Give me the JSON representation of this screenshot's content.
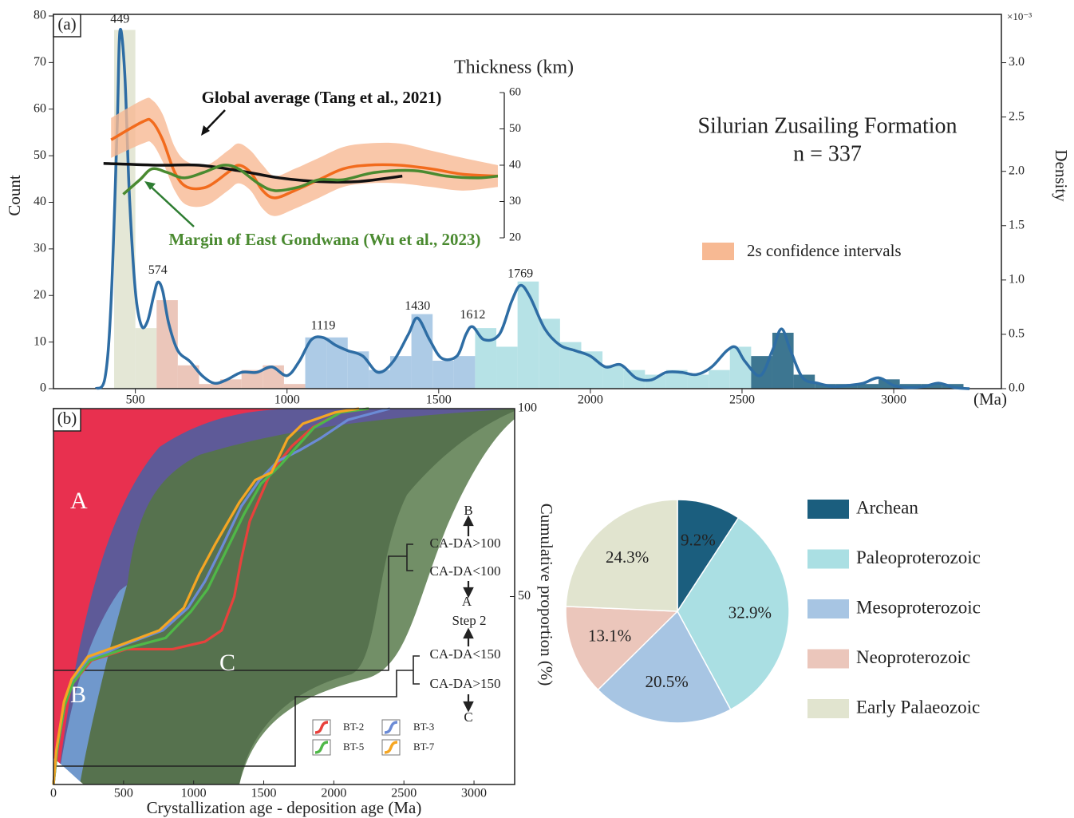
{
  "chart_data": [
    {
      "type": "histogram",
      "panel": "(a)",
      "title": "Silurian Zusailing Formation",
      "subtitle": "n = 337",
      "y_label": "Count",
      "x_unit": "(Ma)",
      "bins": [
        430,
        500,
        570,
        640,
        710,
        780,
        850,
        920,
        990,
        1060,
        1130,
        1200,
        1270,
        1340,
        1410,
        1480,
        1550,
        1620,
        1690,
        1760,
        1830,
        1900,
        1970,
        2040,
        2110,
        2180,
        2250,
        2320,
        2390,
        2460,
        2530,
        2600,
        2670,
        2740,
        2810,
        2880,
        2950,
        3020,
        3090,
        3160,
        3230,
        3300
      ],
      "values": [
        77,
        13,
        19,
        5,
        1,
        2,
        4,
        5,
        1,
        11,
        11,
        8,
        4,
        7,
        16,
        6,
        7,
        13,
        9,
        23,
        15,
        10,
        8,
        5,
        4,
        3,
        4,
        3,
        4,
        9,
        7,
        12,
        3,
        1,
        1,
        1,
        2,
        1,
        1,
        1,
        0
      ],
      "colors": [
        "#dfe3cf",
        "#dfe3cf",
        "#e8bcae",
        "#e8bcae",
        "#e8bcae",
        "#e8bcae",
        "#e8bcae",
        "#e8bcae",
        "#e8bcae",
        "#9fc2e2",
        "#9fc2e2",
        "#9fc2e2",
        "#9fc2e2",
        "#9fc2e2",
        "#9fc2e2",
        "#9fc2e2",
        "#9fc2e2",
        "#a9dde2",
        "#a9dde2",
        "#a9dde2",
        "#a9dde2",
        "#a9dde2",
        "#a9dde2",
        "#a9dde2",
        "#a9dde2",
        "#a9dde2",
        "#a9dde2",
        "#a9dde2",
        "#a9dde2",
        "#a9dde2",
        "#1b5e7e",
        "#1b5e7e",
        "#1b5e7e",
        "#1b5e7e",
        "#1b5e7e",
        "#1b5e7e",
        "#1b5e7e",
        "#1b5e7e",
        "#1b5e7e",
        "#1b5e7e",
        "#1b5e7e"
      ],
      "xlim": [
        230,
        3355
      ],
      "xticks": [
        500,
        1000,
        1500,
        2000,
        2500,
        3000
      ],
      "ylim": [
        0,
        80
      ],
      "yticks": [
        0,
        10,
        20,
        30,
        40,
        50,
        60,
        70,
        80
      ],
      "density": {
        "color": "#2e6da4",
        "x": [
          370,
          400,
          420,
          440,
          449,
          465,
          480,
          500,
          520,
          540,
          560,
          574,
          590,
          610,
          640,
          680,
          720,
          760,
          800,
          850,
          900,
          950,
          1000,
          1040,
          1080,
          1119,
          1160,
          1200,
          1250,
          1300,
          1350,
          1400,
          1430,
          1470,
          1510,
          1560,
          1590,
          1612,
          1650,
          1700,
          1740,
          1769,
          1800,
          1850,
          1900,
          1950,
          2000,
          2050,
          2100,
          2150,
          2200,
          2250,
          2300,
          2350,
          2400,
          2450,
          2480,
          2510,
          2560,
          2600,
          2630,
          2660,
          2700,
          2750,
          2800,
          2850,
          2900,
          2950,
          3000,
          3050,
          3100,
          3150,
          3200,
          3250
        ],
        "values": [
          0,
          0.1,
          0.8,
          2.4,
          3.29,
          2.9,
          1.8,
          0.9,
          0.58,
          0.62,
          0.85,
          0.98,
          0.9,
          0.6,
          0.35,
          0.25,
          0.12,
          0.05,
          0.08,
          0.15,
          0.15,
          0.2,
          0.12,
          0.25,
          0.45,
          0.47,
          0.4,
          0.35,
          0.3,
          0.15,
          0.25,
          0.5,
          0.65,
          0.45,
          0.28,
          0.3,
          0.5,
          0.57,
          0.45,
          0.5,
          0.8,
          0.95,
          0.85,
          0.55,
          0.4,
          0.35,
          0.3,
          0.2,
          0.22,
          0.1,
          0.08,
          0.15,
          0.15,
          0.13,
          0.2,
          0.35,
          0.38,
          0.25,
          0.12,
          0.35,
          0.55,
          0.35,
          0.1,
          0.05,
          0.02,
          0.03,
          0.05,
          0.1,
          0.03,
          0.01,
          0.02,
          0.05,
          0.01,
          0
        ]
      },
      "y2_label": "Density",
      "y2_unit": "×10⁻³",
      "y2lim": [
        0,
        3.43
      ],
      "y2ticks": [
        {
          "value": 0,
          "label": "0.0"
        },
        0.5,
        {
          "value": 1,
          "label": "1.0"
        },
        1.5,
        {
          "value": 2,
          "label": "2.0"
        },
        2.5,
        {
          "value": 3,
          "label": "3.0"
        }
      ],
      "peaks": [
        449,
        574,
        1119,
        1430,
        1612,
        1769
      ]
    },
    {
      "type": "line",
      "title": "Thickness (km)",
      "ylim": [
        20,
        60
      ],
      "yticks": [
        20,
        30,
        40,
        50,
        60
      ],
      "band_label": "2s confidence intervals",
      "band_color": "#f7b993",
      "series": [
        {
          "color": "#f26b1d",
          "x": [
            420,
            525,
            555,
            590,
            630,
            670,
            735,
            805,
            840,
            880,
            920,
            960,
            1025,
            1105,
            1185,
            1265,
            1370,
            1475,
            1580,
            1695
          ],
          "values": [
            47,
            52,
            52,
            47,
            38,
            34,
            34,
            38,
            40,
            38,
            33,
            31,
            33,
            36,
            39,
            40,
            40,
            39,
            37.5,
            37
          ],
          "upper": [
            53,
            58,
            58,
            54,
            45,
            41,
            40,
            44,
            46,
            44,
            40,
            37,
            39,
            42,
            45,
            46,
            46,
            44,
            42,
            40
          ],
          "lower": [
            42,
            46,
            46,
            41,
            33,
            29,
            29,
            33,
            35,
            33,
            28,
            26,
            28,
            31,
            34,
            35,
            35,
            34,
            33,
            34
          ]
        },
        {
          "name": "Global average (Tang et al., 2021)",
          "color": "#111111",
          "x": [
            395,
            580,
            710,
            840,
            975,
            1105,
            1235,
            1380
          ],
          "values": [
            40.5,
            40,
            40,
            38.5,
            36.5,
            35.5,
            35.5,
            37
          ]
        },
        {
          "name": "Margin of East Gondwana (Wu et al., 2023)",
          "color": "#4a8a30",
          "x": [
            460,
            515,
            555,
            605,
            660,
            725,
            790,
            840,
            905,
            960,
            1040,
            1105,
            1185,
            1290,
            1420,
            1525,
            1630,
            1695
          ],
          "values": [
            32,
            36,
            39,
            38,
            36.5,
            38,
            40,
            39,
            35,
            33,
            34,
            36,
            36,
            38,
            38.5,
            37,
            36.5,
            37
          ]
        }
      ]
    },
    {
      "type": "line",
      "panel": "(b)",
      "x_label": "Crystallization age - deposition age (Ma)",
      "y_label": "Cumulative proportion (%)",
      "xlim": [
        0,
        3290
      ],
      "xticks": [
        0,
        500,
        1000,
        1500,
        2000,
        2500,
        3000
      ],
      "ylim": [
        0,
        100
      ],
      "yticks": [
        50,
        100
      ],
      "fields": [
        "A",
        "B",
        "C"
      ],
      "annotations": [
        "B",
        "CA-DA>100",
        "CA-DA<100",
        "A",
        "Step 2",
        "CA-DA<150",
        "CA-DA>150",
        "C"
      ],
      "series": [
        {
          "name": "BT-2",
          "color": "#e8413c",
          "x": [
            0,
            25,
            80,
            140,
            270,
            520,
            850,
            1080,
            1200,
            1290,
            1340,
            1400,
            1550,
            1700,
            1850,
            2050,
            2250
          ],
          "values": [
            0,
            9,
            21,
            27,
            33,
            36,
            36,
            38,
            41,
            50,
            60,
            70,
            83,
            90,
            95,
            99,
            100
          ]
        },
        {
          "name": "BT-3",
          "color": "#6b8bd6",
          "x": [
            0,
            25,
            80,
            135,
            255,
            490,
            780,
            960,
            1080,
            1200,
            1340,
            1470,
            1600,
            1760,
            1900,
            2100,
            2400
          ],
          "values": [
            0,
            9,
            21,
            28,
            33,
            37,
            41,
            47,
            54,
            63,
            74,
            81,
            86,
            89,
            92,
            97,
            100
          ]
        },
        {
          "name": "BT-5",
          "color": "#4fb848",
          "x": [
            0,
            25,
            80,
            140,
            260,
            500,
            800,
            980,
            1100,
            1230,
            1360,
            1480,
            1620,
            1740,
            1860,
            2050,
            2250
          ],
          "values": [
            0,
            9,
            21,
            27,
            33,
            36,
            39,
            46,
            52,
            62,
            72,
            80,
            85,
            90,
            95,
            99,
            100
          ]
        },
        {
          "name": "BT-7",
          "color": "#f5a623",
          "x": [
            0,
            20,
            75,
            130,
            245,
            470,
            755,
            930,
            1040,
            1155,
            1325,
            1440,
            1555,
            1670,
            1780,
            2010,
            2180
          ],
          "values": [
            0,
            9,
            22,
            28,
            34,
            37,
            41,
            47,
            56,
            64,
            75,
            81,
            83,
            92,
            96,
            99,
            100
          ]
        }
      ]
    },
    {
      "type": "pie",
      "categories": [
        "Archean",
        "Paleoproterozoic",
        "Mesoproterozoic",
        "Neoproterozoic",
        "Early Palaeozoic"
      ],
      "values": [
        9.2,
        32.9,
        20.5,
        13.1,
        24.3
      ],
      "value_labels": [
        "9.2%",
        "32.9%",
        "20.5%",
        "13.1%",
        "24.3%"
      ],
      "colors": [
        "#1b5e7e",
        "#aadfe3",
        "#a7c5e3",
        "#ebc6bb",
        "#e1e4cf"
      ]
    }
  ]
}
